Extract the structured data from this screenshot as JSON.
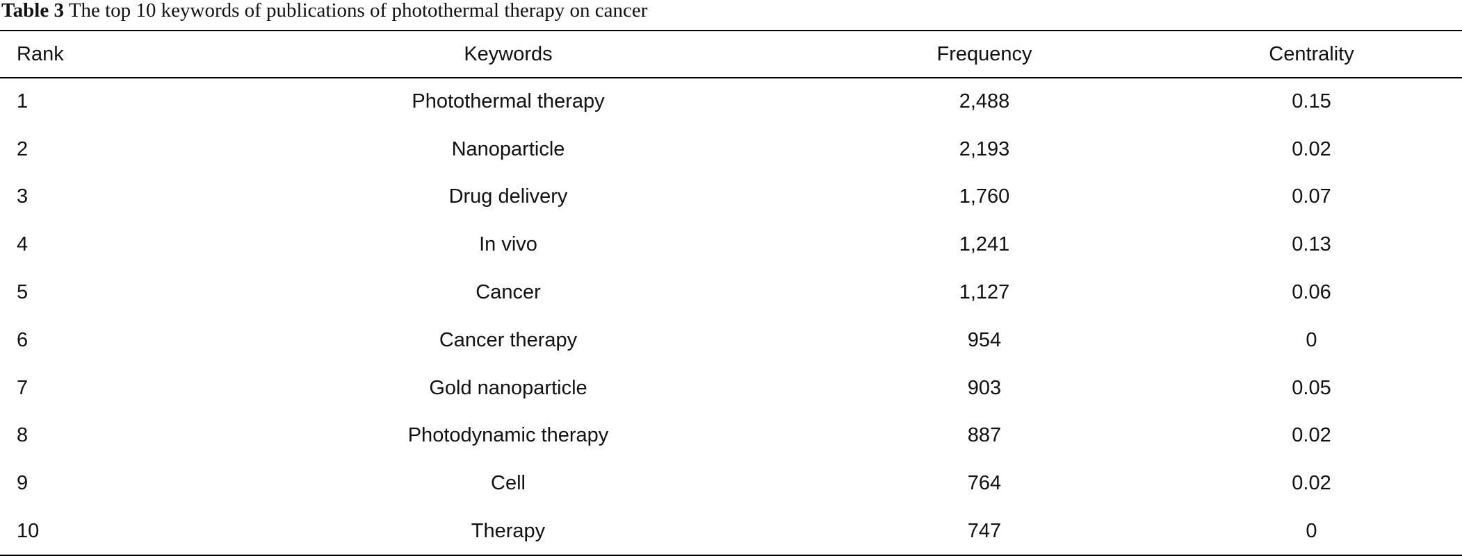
{
  "caption": {
    "label": "Table 3",
    "text": "The top 10 keywords of publications of photothermal therapy on cancer"
  },
  "table": {
    "header": [
      "Rank",
      "Keywords",
      "Frequency",
      "Centrality"
    ],
    "rows": [
      [
        "1",
        "Photothermal therapy",
        "2,488",
        "0.15"
      ],
      [
        "2",
        "Nanoparticle",
        "2,193",
        "0.02"
      ],
      [
        "3",
        "Drug delivery",
        "1,760",
        "0.07"
      ],
      [
        "4",
        "In vivo",
        "1,241",
        "0.13"
      ],
      [
        "5",
        "Cancer",
        "1,127",
        "0.06"
      ],
      [
        "6",
        "Cancer therapy",
        "954",
        "0"
      ],
      [
        "7",
        "Gold nanoparticle",
        "903",
        "0.05"
      ],
      [
        "8",
        "Photodynamic therapy",
        "887",
        "0.02"
      ],
      [
        "9",
        "Cell",
        "764",
        "0.02"
      ],
      [
        "10",
        "Therapy",
        "747",
        "0"
      ]
    ]
  }
}
